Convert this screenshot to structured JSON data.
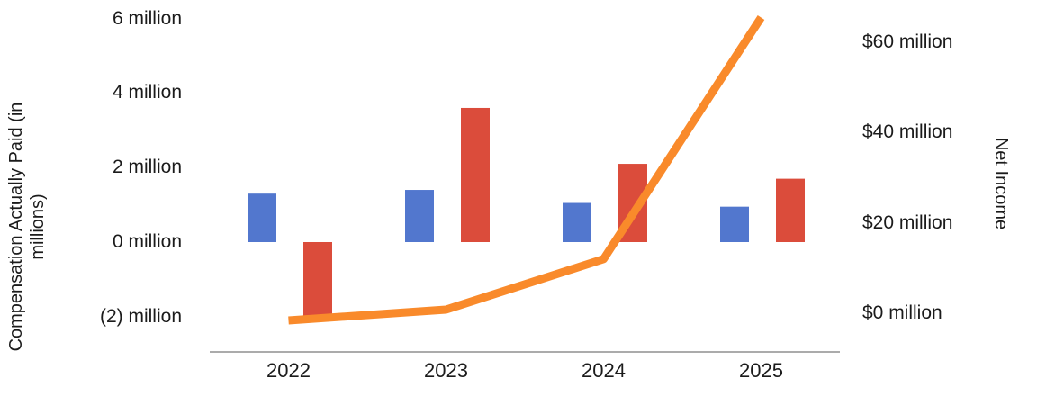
{
  "chart_data": {
    "type": "combo",
    "subtype": "grouped-bar-plus-line-dual-axis",
    "title": "",
    "categories": [
      "2022",
      "2023",
      "2024",
      "2025"
    ],
    "series": [
      {
        "name": "Compensation Actually Paid (blue bars)",
        "type": "bar",
        "axis": "left",
        "color": "#5277CE",
        "values": [
          1.3,
          1.4,
          1.05,
          0.95
        ]
      },
      {
        "name": "Compensation Actually Paid (red bars)",
        "type": "bar",
        "axis": "left",
        "color": "#DB4C3B",
        "values": [
          -2.0,
          3.6,
          2.1,
          1.7
        ]
      },
      {
        "name": "Net Income (orange line)",
        "type": "line",
        "axis": "right",
        "color": "#F98A2B",
        "values": [
          -1.6,
          0.8,
          12,
          65.5
        ]
      }
    ],
    "left_axis": {
      "title": "Compensation Actually Paid (in millions)",
      "tick_labels": [
        "6 million",
        "4 million",
        "2 million",
        "0 million",
        "(2) million"
      ],
      "tick_values": [
        6,
        4,
        2,
        0,
        -2
      ],
      "range": [
        -3,
        6.5
      ]
    },
    "right_axis": {
      "title": "Net Income",
      "tick_labels": [
        "$60 million",
        "$40 million",
        "$20 million",
        "$0 million"
      ],
      "tick_values": [
        60,
        40,
        20,
        0
      ],
      "range": [
        -9,
        66.5
      ]
    },
    "x_axis": {
      "tick_labels": [
        "2022",
        "2023",
        "2024",
        "2025"
      ]
    },
    "legend": {
      "visible": false
    },
    "grid": false
  },
  "colors": {
    "axis_line": "#ABABAB",
    "text": "#1B1B1B",
    "background": "#FFFFFF"
  }
}
